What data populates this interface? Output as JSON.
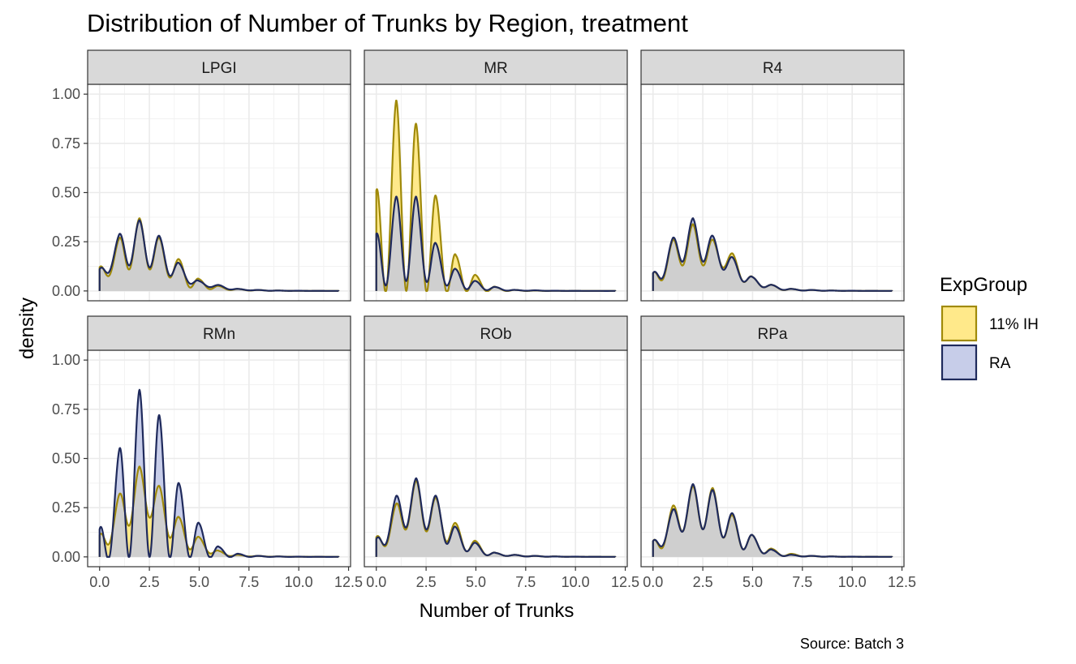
{
  "chart_data": {
    "type": "area",
    "title": "Distribution of Number of Trunks by Region, treatment",
    "xlabel": "Number of Trunks",
    "ylabel": "density",
    "caption": "Source: Batch 3",
    "xlim": [
      -0.6,
      12.6
    ],
    "ylim": [
      -0.05,
      1.05
    ],
    "x_ticks": [
      0,
      2.5,
      5,
      7.5,
      10,
      12.5
    ],
    "x_tick_labels": [
      "0.0",
      "2.5",
      "5.0",
      "7.5",
      "10.0",
      "12.5"
    ],
    "y_ticks": [
      0,
      0.25,
      0.5,
      0.75,
      1
    ],
    "y_tick_labels": [
      "0.00",
      "0.25",
      "0.50",
      "0.75",
      "1.00"
    ],
    "grid": true,
    "legend": {
      "title": "ExpGroup",
      "position": "right",
      "entries": [
        {
          "label": "11% IH",
          "fill": "#FFE98A",
          "line": "#A08A0A"
        },
        {
          "label": "RA",
          "fill": "#C7CDE9",
          "line": "#1F2A5C"
        }
      ]
    },
    "x_range": [
      0,
      12
    ],
    "overlap_fill": "#CFCFCF",
    "facets": [
      {
        "name": "LPGI",
        "series": [
          {
            "name": "11% IH",
            "values": [
              0.12,
              0.27,
              0.37,
              0.27,
              0.16,
              0.06,
              0.025,
              0.01,
              0.005,
              0.002,
              0.001,
              0.0005,
              0.0003
            ],
            "troughs": [
              0.08,
              0.11,
              0.11,
              0.07,
              0.02,
              0.01,
              0.005,
              0.002,
              0.001,
              0.0005,
              0.0003,
              0.0002
            ]
          },
          {
            "name": "RA",
            "values": [
              0.11,
              0.29,
              0.36,
              0.28,
              0.14,
              0.05,
              0.03,
              0.01,
              0.005,
              0.002,
              0.001,
              0.0005,
              0.0003
            ],
            "troughs": [
              0.1,
              0.13,
              0.12,
              0.08,
              0.04,
              0.02,
              0.008,
              0.003,
              0.001,
              0.0005,
              0.0003,
              0.0002
            ]
          }
        ]
      },
      {
        "name": "MR",
        "series": [
          {
            "name": "11% IH",
            "values": [
              0.51,
              0.97,
              0.85,
              0.48,
              0.18,
              0.08,
              0.02,
              0.005,
              0.002,
              0.001,
              0.0005,
              0.0003,
              0.0002
            ],
            "troughs": [
              0.0,
              0.0,
              0.0,
              0.0,
              0.0,
              0.0,
              0.0,
              0.0,
              0.0,
              0.0,
              0.0,
              0.0
            ]
          },
          {
            "name": "RA",
            "values": [
              0.29,
              0.48,
              0.48,
              0.24,
              0.11,
              0.05,
              0.02,
              0.005,
              0.003,
              0.001,
              0.0005,
              0.0003,
              0.0002
            ],
            "troughs": [
              0.03,
              0.05,
              0.05,
              0.03,
              0.01,
              0.005,
              0.002,
              0.001,
              0.0005,
              0.0003,
              0.0002,
              0.0001
            ]
          }
        ]
      },
      {
        "name": "R4",
        "series": [
          {
            "name": "11% IH",
            "values": [
              0.09,
              0.26,
              0.34,
              0.26,
              0.19,
              0.07,
              0.03,
              0.01,
              0.005,
              0.002,
              0.001,
              0.0005,
              0.0003
            ],
            "troughs": [
              0.06,
              0.13,
              0.13,
              0.12,
              0.05,
              0.02,
              0.005,
              0.002,
              0.001,
              0.0005,
              0.0003,
              0.0002
            ]
          },
          {
            "name": "RA",
            "values": [
              0.09,
              0.27,
              0.37,
              0.28,
              0.17,
              0.07,
              0.03,
              0.01,
              0.005,
              0.002,
              0.001,
              0.0005,
              0.0003
            ],
            "troughs": [
              0.07,
              0.15,
              0.15,
              0.11,
              0.05,
              0.02,
              0.006,
              0.002,
              0.001,
              0.0005,
              0.0003,
              0.0002
            ]
          }
        ]
      },
      {
        "name": "RMn",
        "series": [
          {
            "name": "11% IH",
            "values": [
              0.11,
              0.32,
              0.46,
              0.36,
              0.2,
              0.1,
              0.03,
              0.01,
              0.005,
              0.002,
              0.001,
              0.0005,
              0.0003
            ],
            "troughs": [
              0.07,
              0.16,
              0.2,
              0.1,
              0.04,
              0.02,
              0.005,
              0.002,
              0.001,
              0.0005,
              0.0003,
              0.0002
            ]
          },
          {
            "name": "RA",
            "values": [
              0.14,
              0.55,
              0.85,
              0.72,
              0.37,
              0.17,
              0.05,
              0.015,
              0.005,
              0.002,
              0.001,
              0.0005,
              0.0003
            ],
            "troughs": [
              0.0,
              0.0,
              0.0,
              0.0,
              0.0,
              0.0,
              0.0,
              0.0,
              0.0,
              0.0,
              0.0,
              0.0
            ]
          }
        ]
      },
      {
        "name": "ROb",
        "series": [
          {
            "name": "11% IH",
            "values": [
              0.1,
              0.27,
              0.39,
              0.3,
              0.17,
              0.08,
              0.02,
              0.01,
              0.005,
              0.002,
              0.001,
              0.0005,
              0.0003
            ],
            "troughs": [
              0.06,
              0.14,
              0.13,
              0.08,
              0.03,
              0.01,
              0.005,
              0.002,
              0.001,
              0.0005,
              0.0003,
              0.0002
            ]
          },
          {
            "name": "RA",
            "values": [
              0.09,
              0.31,
              0.4,
              0.31,
              0.15,
              0.07,
              0.02,
              0.01,
              0.005,
              0.002,
              0.001,
              0.0005,
              0.0003
            ],
            "troughs": [
              0.07,
              0.15,
              0.14,
              0.07,
              0.03,
              0.01,
              0.005,
              0.002,
              0.001,
              0.0005,
              0.0003,
              0.0002
            ]
          }
        ]
      },
      {
        "name": "RPa",
        "series": [
          {
            "name": "11% IH",
            "values": [
              0.08,
              0.26,
              0.36,
              0.35,
              0.21,
              0.11,
              0.04,
              0.015,
              0.005,
              0.002,
              0.001,
              0.0005,
              0.0003
            ],
            "troughs": [
              0.05,
              0.13,
              0.14,
              0.1,
              0.04,
              0.02,
              0.005,
              0.002,
              0.001,
              0.0005,
              0.0003,
              0.0002
            ]
          },
          {
            "name": "RA",
            "values": [
              0.08,
              0.24,
              0.37,
              0.34,
              0.22,
              0.11,
              0.035,
              0.01,
              0.005,
              0.002,
              0.001,
              0.0005,
              0.0003
            ],
            "troughs": [
              0.06,
              0.13,
              0.14,
              0.1,
              0.04,
              0.02,
              0.005,
              0.002,
              0.001,
              0.0005,
              0.0003,
              0.0002
            ]
          }
        ]
      }
    ]
  }
}
